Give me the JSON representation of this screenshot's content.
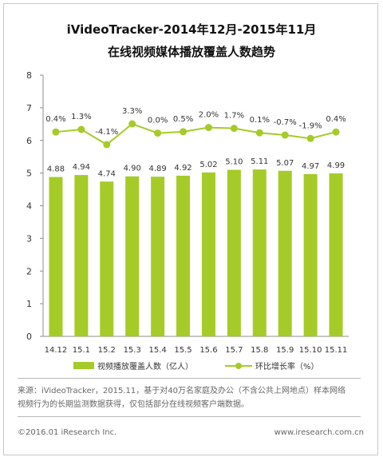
{
  "header": {
    "title_line1": "iVideoTracker-2014年12月-2015年11月",
    "title_line2": "在线视频媒体播放覆盖人数趋势"
  },
  "chart_data": {
    "type": "bar",
    "categories": [
      "14.12",
      "15.1",
      "15.2",
      "15.3",
      "15.4",
      "15.5",
      "15.6",
      "15.7",
      "15.8",
      "15.9",
      "15.10",
      "15.11"
    ],
    "series": [
      {
        "name": "视频播放覆盖人数（亿人）",
        "kind": "bar",
        "color": "#a5cb28",
        "values": [
          4.88,
          4.94,
          4.74,
          4.9,
          4.89,
          4.92,
          5.02,
          5.1,
          5.11,
          5.07,
          4.97,
          4.99
        ],
        "labels": [
          "4.88",
          "4.94",
          "4.74",
          "4.90",
          "4.89",
          "4.92",
          "5.02",
          "5.10",
          "5.11",
          "5.07",
          "4.97",
          "4.99"
        ]
      },
      {
        "name": "环比增长率（%）",
        "kind": "line",
        "color": "#a5cb28",
        "values": [
          0.4,
          1.3,
          -4.1,
          3.3,
          0.0,
          0.5,
          2.0,
          1.7,
          0.1,
          -0.7,
          -1.9,
          0.4
        ],
        "labels": [
          "0.4%",
          "1.3%",
          "-4.1%",
          "3.3%",
          "0.0%",
          "0.5%",
          "2.0%",
          "1.7%",
          "0.1%",
          "-0.7%",
          "-1.9%",
          "0.4%"
        ]
      }
    ],
    "ylim": [
      0,
      8
    ],
    "yticks": [
      "0",
      "1",
      "2",
      "3",
      "4",
      "5",
      "6",
      "7",
      "8"
    ],
    "legend_position": "bottom",
    "grid": false
  },
  "footer": {
    "source_line1": "来源：iVideoTracker，2015.11，基于对40万名家庭及办公（不含公共上网地点）样本网络",
    "source_line2": "视频行为的长期监测数据获得，仅包括部分在线视频客户端数据。",
    "copyright": "©2016.01 iResearch Inc.",
    "website": "www.iresearch.com.cn"
  }
}
